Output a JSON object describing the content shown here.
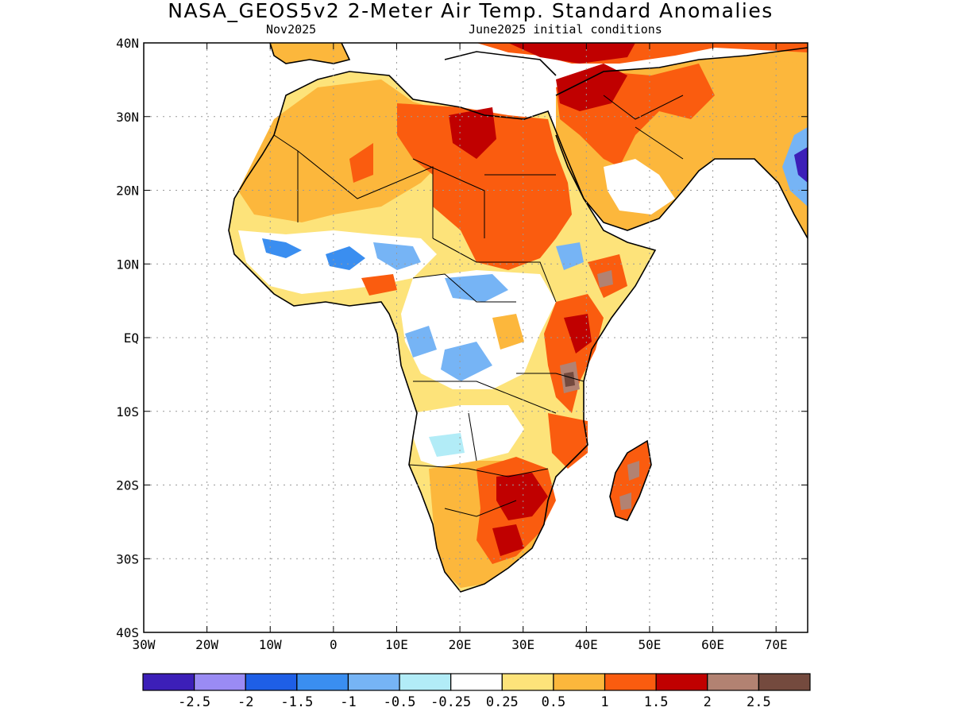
{
  "title": "NASA_GEOS5v2 2-Meter Air Temp. Standard Anomalies",
  "subtitle_left": "Nov2025",
  "subtitle_right": "June2025 initial conditions",
  "map": {
    "lon_range": [
      -30,
      75
    ],
    "lat_range": [
      -40,
      40
    ],
    "lon_ticks": [
      "30W",
      "20W",
      "10W",
      "0",
      "10E",
      "20E",
      "30E",
      "40E",
      "50E",
      "60E",
      "70E"
    ],
    "lat_ticks": [
      "40N",
      "30N",
      "20N",
      "10N",
      "EQ",
      "10S",
      "20S",
      "30S",
      "40S"
    ],
    "grid": true
  },
  "colorbar": {
    "colors": [
      "#3c1fb8",
      "#9a8bf4",
      "#1e5fe6",
      "#3a8ef0",
      "#76b4f5",
      "#b2ecf7",
      "#ffffff",
      "#fde37a",
      "#fcb73c",
      "#fa5c0f",
      "#c00000",
      "#b28272",
      "#744a3e"
    ],
    "labels": [
      "-2.5",
      "-2",
      "-1.5",
      "-1",
      "-0.5",
      "-0.25",
      "0.25",
      "0.5",
      "1",
      "1.5",
      "2",
      "2.5"
    ]
  }
}
